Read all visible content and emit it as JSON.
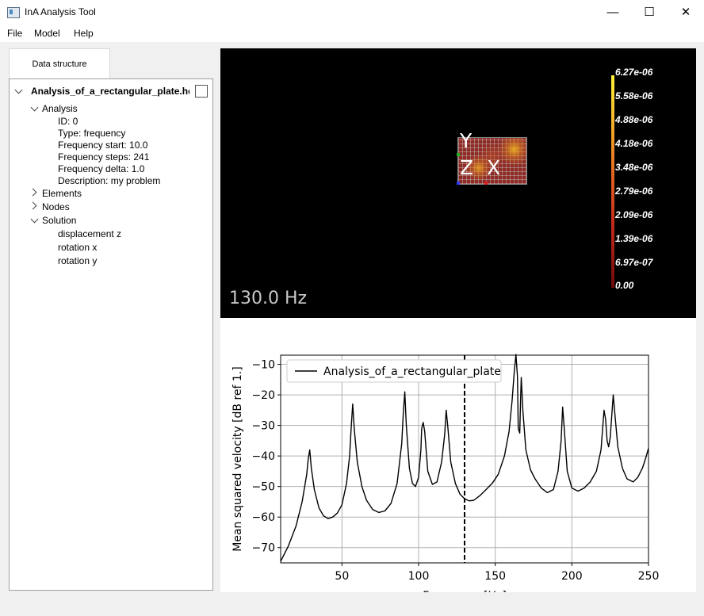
{
  "window": {
    "title": "InA Analysis Tool",
    "buttons": {
      "minimize": "—",
      "maximize": "☐",
      "close": "✕"
    }
  },
  "menu": {
    "items": [
      "File",
      "Model",
      "Help"
    ]
  },
  "sidebar": {
    "tab_label": "Data structure",
    "tree": {
      "root": "Analysis_of_a_rectangular_plate.hd",
      "analysis": {
        "label": "Analysis",
        "props": [
          "ID: 0",
          "Type: frequency",
          "Frequency start: 10.0",
          "Frequency steps: 241",
          "Frequency delta: 1.0",
          "Description: my problem"
        ]
      },
      "elements": "Elements",
      "nodes": "Nodes",
      "solution": {
        "label": "Solution",
        "items": [
          "displacement z",
          "rotation x",
          "rotation y"
        ]
      }
    }
  },
  "viewport": {
    "frequency_label": "130.0 Hz",
    "axes": {
      "y": "Y",
      "z": "Z",
      "x": "X"
    },
    "colorbar_labels": [
      "6.27e-06",
      "5.58e-06",
      "4.88e-06",
      "4.18e-06",
      "3.48e-06",
      "2.79e-06",
      "2.09e-06",
      "1.39e-06",
      "6.97e-07",
      "0.00"
    ],
    "colors": {
      "background": "#000000",
      "text": "#ffffff"
    }
  },
  "chart_data": {
    "type": "line",
    "xlabel": "Frequency [Hz]",
    "ylabel": "Mean squared velocity [dB ref 1.]",
    "xlim": [
      10,
      250
    ],
    "ylim": [
      -75,
      -7
    ],
    "xticks": [
      50,
      100,
      150,
      200,
      250
    ],
    "yticks": [
      -10,
      -20,
      -30,
      -40,
      -50,
      -60,
      -70
    ],
    "grid": true,
    "legend": "top-left",
    "marker_line_x": 130,
    "series": [
      {
        "name": "Analysis_of_a_rectangular_plate",
        "color": "#000000",
        "points": [
          [
            10,
            -74.5
          ],
          [
            15,
            -69.5
          ],
          [
            20,
            -63
          ],
          [
            24,
            -55
          ],
          [
            27,
            -46
          ],
          [
            28,
            -41
          ],
          [
            29,
            -38
          ],
          [
            30,
            -44
          ],
          [
            32,
            -51
          ],
          [
            35,
            -57
          ],
          [
            38,
            -59.6
          ],
          [
            41,
            -60.5
          ],
          [
            44,
            -60
          ],
          [
            47,
            -58.7
          ],
          [
            50,
            -56
          ],
          [
            53,
            -49
          ],
          [
            55,
            -40
          ],
          [
            56,
            -31
          ],
          [
            57,
            -23
          ],
          [
            58,
            -31
          ],
          [
            60,
            -42
          ],
          [
            63,
            -50
          ],
          [
            66,
            -54.5
          ],
          [
            70,
            -57.5
          ],
          [
            74,
            -58.5
          ],
          [
            78,
            -58
          ],
          [
            82,
            -55.5
          ],
          [
            86,
            -49
          ],
          [
            89,
            -36
          ],
          [
            90,
            -26
          ],
          [
            91,
            -19
          ],
          [
            92,
            -30
          ],
          [
            94,
            -44
          ],
          [
            96,
            -49
          ],
          [
            98,
            -50
          ],
          [
            100,
            -47
          ],
          [
            101.5,
            -38
          ],
          [
            102,
            -31
          ],
          [
            103,
            -29
          ],
          [
            104,
            -32
          ],
          [
            106,
            -45
          ],
          [
            109,
            -49.3
          ],
          [
            112,
            -48.5
          ],
          [
            115,
            -42
          ],
          [
            117,
            -33
          ],
          [
            118,
            -25
          ],
          [
            119,
            -30
          ],
          [
            121,
            -42
          ],
          [
            124,
            -49
          ],
          [
            127,
            -52.5
          ],
          [
            130,
            -54
          ],
          [
            133,
            -54.7
          ],
          [
            136,
            -54.5
          ],
          [
            140,
            -53
          ],
          [
            144,
            -51
          ],
          [
            148,
            -49
          ],
          [
            152,
            -46
          ],
          [
            156,
            -40
          ],
          [
            159,
            -32
          ],
          [
            161,
            -22
          ],
          [
            162.5,
            -12
          ],
          [
            163.5,
            -6.8
          ],
          [
            164.5,
            -14
          ],
          [
            165,
            -31
          ],
          [
            166,
            -32.5
          ],
          [
            166.5,
            -22
          ],
          [
            167,
            -14.3
          ],
          [
            168,
            -25
          ],
          [
            170,
            -38
          ],
          [
            173,
            -44.5
          ],
          [
            176,
            -47.5
          ],
          [
            180,
            -50.5
          ],
          [
            184,
            -52
          ],
          [
            188,
            -51
          ],
          [
            191,
            -45
          ],
          [
            193,
            -35
          ],
          [
            194,
            -24
          ],
          [
            195,
            -31
          ],
          [
            197,
            -45
          ],
          [
            200,
            -50.5
          ],
          [
            204,
            -51.5
          ],
          [
            208,
            -50.5
          ],
          [
            212,
            -48.5
          ],
          [
            216,
            -45
          ],
          [
            219,
            -38
          ],
          [
            221,
            -25
          ],
          [
            222,
            -28
          ],
          [
            223,
            -35
          ],
          [
            224,
            -37
          ],
          [
            225,
            -34
          ],
          [
            226,
            -27
          ],
          [
            227,
            -20
          ],
          [
            228,
            -26
          ],
          [
            230,
            -37
          ],
          [
            233,
            -44
          ],
          [
            236,
            -47.5
          ],
          [
            240,
            -48.5
          ],
          [
            243,
            -47
          ],
          [
            246,
            -44
          ],
          [
            248,
            -41
          ],
          [
            250,
            -37.5
          ]
        ]
      }
    ]
  }
}
